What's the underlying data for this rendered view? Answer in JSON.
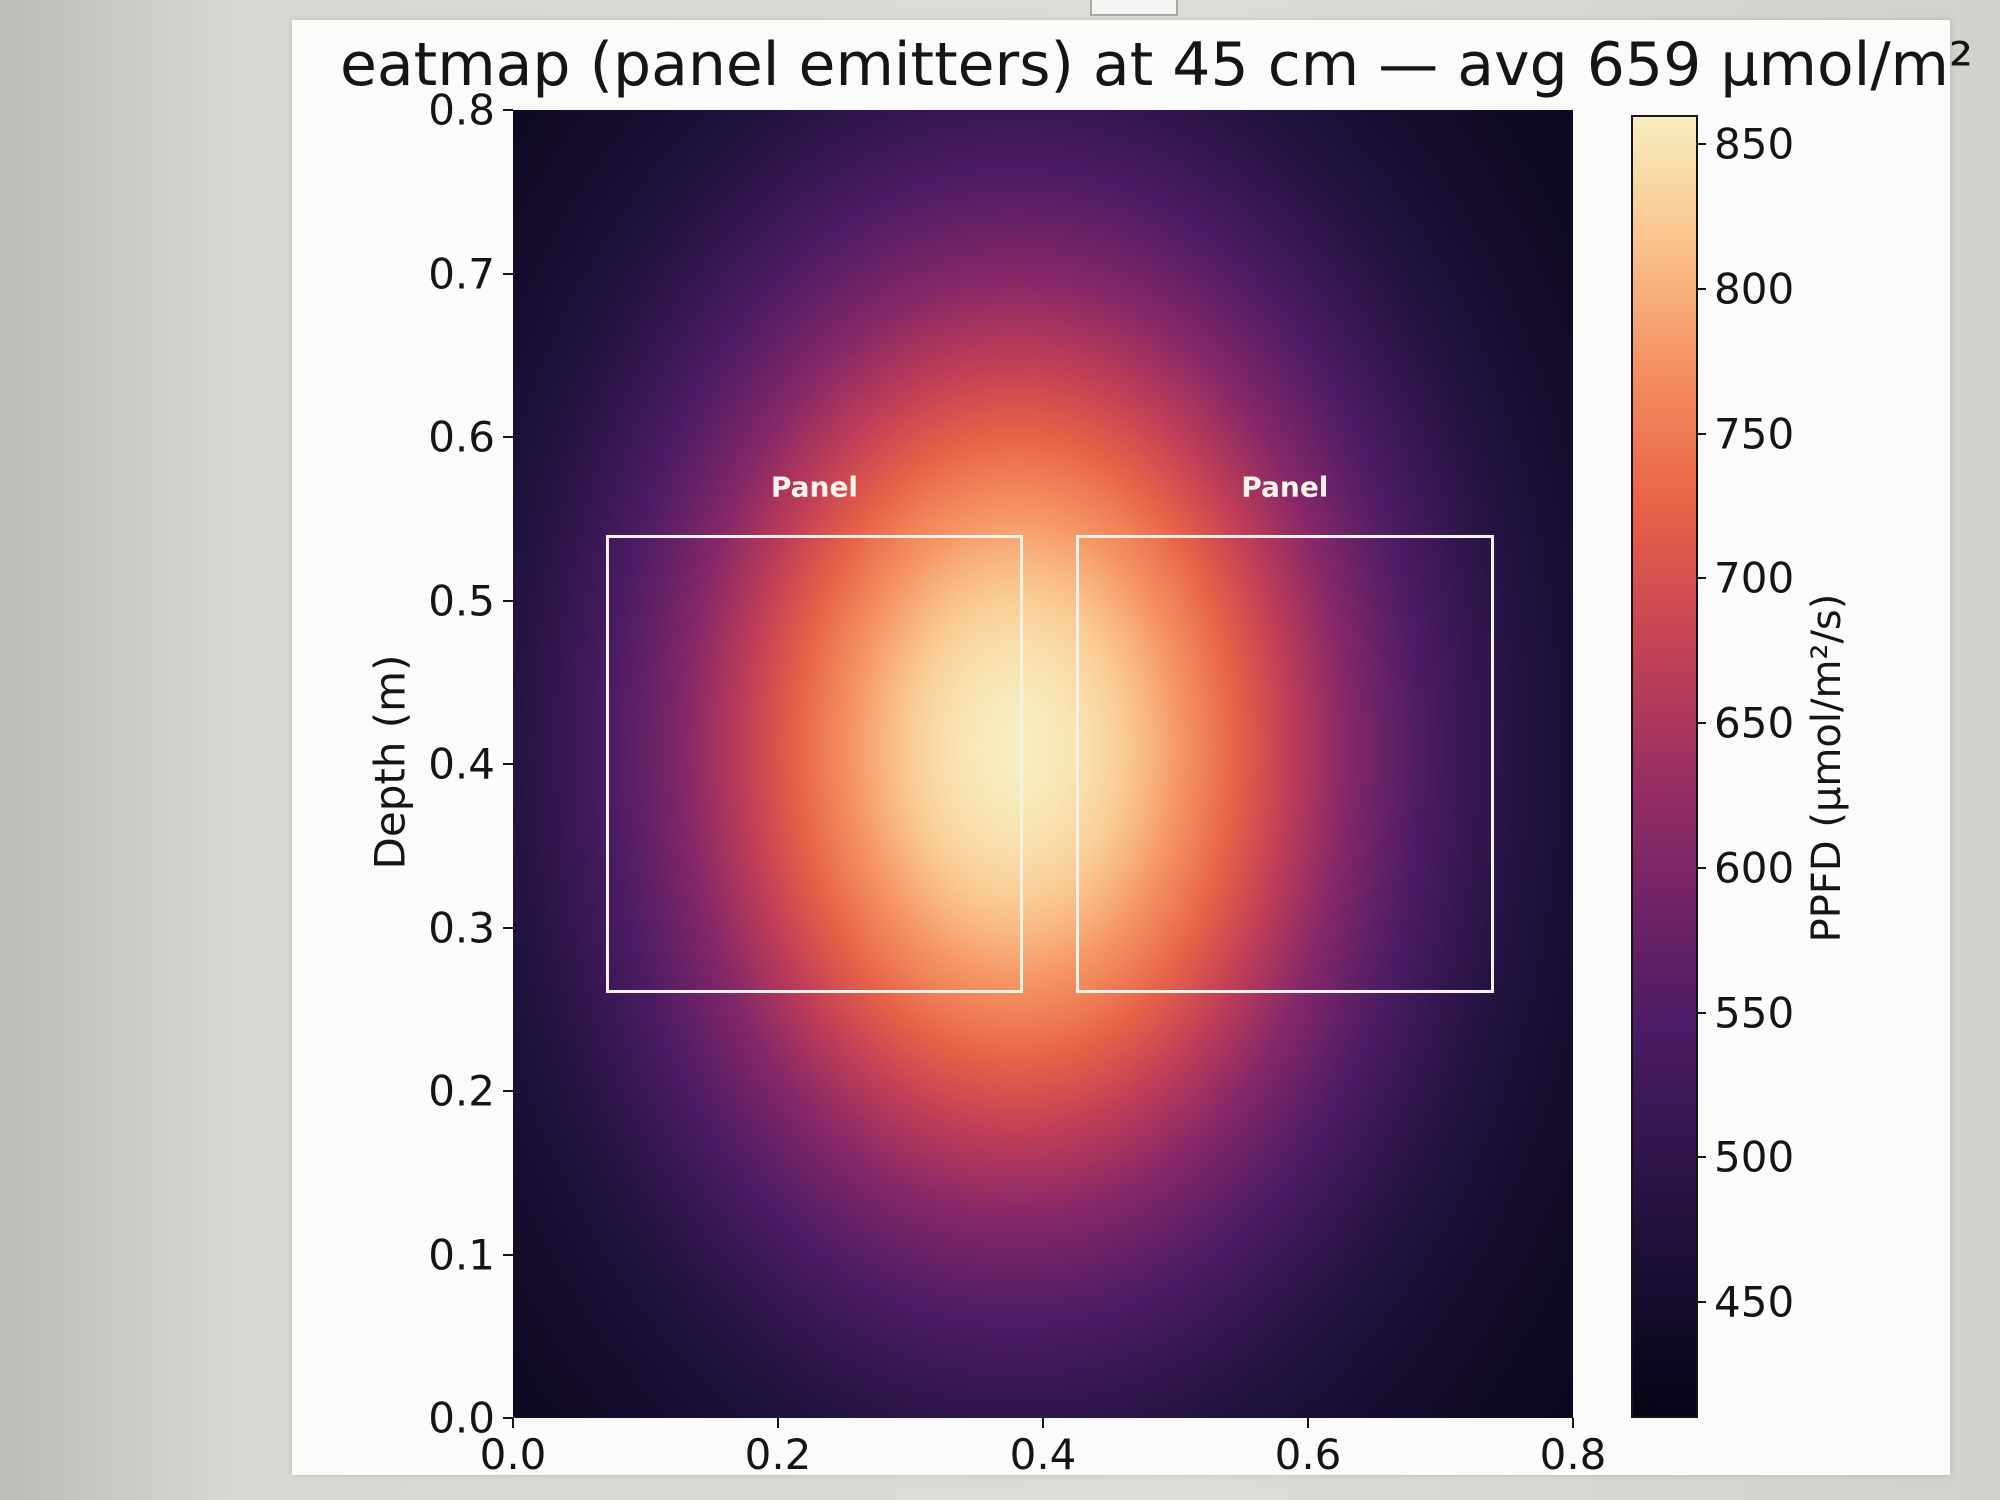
{
  "chart_data": {
    "type": "heatmap",
    "title": "eatmap (panel emitters) at 45 cm — avg 659 μmol/m²",
    "xlabel": "",
    "ylabel": "Depth (m)",
    "xlim": [
      0.0,
      0.8
    ],
    "ylim": [
      0.0,
      0.8
    ],
    "x_ticks": [
      "0.0",
      "0.2",
      "0.4",
      "0.6",
      "0.8"
    ],
    "y_ticks": [
      "0.0",
      "0.1",
      "0.2",
      "0.3",
      "0.4",
      "0.5",
      "0.6",
      "0.7",
      "0.8"
    ],
    "colorbar": {
      "label": "PPFD (μmol/m²/s)",
      "range": [
        410,
        860
      ],
      "ticks": [
        "450",
        "500",
        "550",
        "600",
        "650",
        "700",
        "750",
        "800",
        "850"
      ],
      "colormap": "magma-like"
    },
    "heat_field": {
      "peak_center": [
        0.38,
        0.41
      ],
      "peak_value": 860,
      "corner_value": 420,
      "average": 659
    },
    "annotations": [
      {
        "text": "Panel",
        "x0": 0.07,
        "x1": 0.385,
        "y0": 0.26,
        "y1": 0.54
      },
      {
        "text": "Panel",
        "x0": 0.425,
        "x1": 0.74,
        "y0": 0.26,
        "y1": 0.54
      }
    ]
  }
}
